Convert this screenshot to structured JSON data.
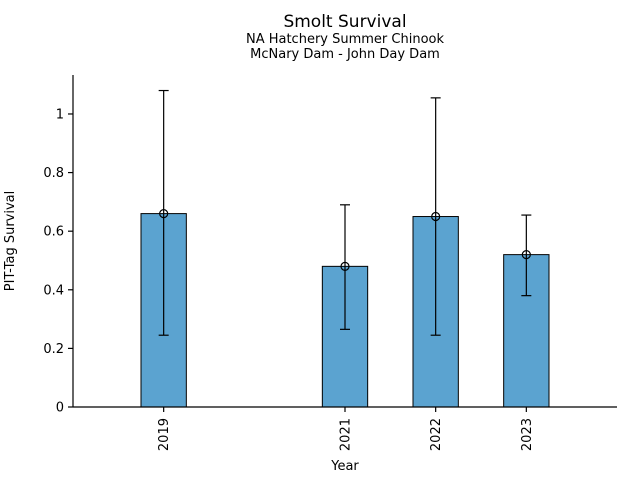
{
  "chart_data": {
    "type": "bar",
    "title": "Smolt Survival",
    "subtitle1": "NA Hatchery Summer Chinook",
    "subtitle2": "McNary Dam - John Day Dam",
    "xlabel": "Year",
    "ylabel": "PIT-Tag Survival",
    "categories": [
      2019,
      2021,
      2022,
      2023
    ],
    "category_labels": [
      "2019",
      "2021",
      "2022",
      "2023"
    ],
    "values": [
      0.66,
      0.48,
      0.65,
      0.52
    ],
    "error_low": [
      0.245,
      0.265,
      0.245,
      0.38
    ],
    "error_high": [
      1.08,
      0.69,
      1.055,
      0.655
    ],
    "xlim": [
      2018,
      2024
    ],
    "ylim": [
      0,
      1.133
    ],
    "yticks": [
      0,
      0.2,
      0.4,
      0.6,
      0.8,
      1
    ],
    "ytick_labels": [
      "0",
      "0.2",
      "0.4",
      "0.6",
      "0.8",
      "1"
    ],
    "bar_width_years": 0.5,
    "bar_color": "#5BA3D0",
    "bar_edge_color": "#000000",
    "error_color": "#000000",
    "marker": "open-circle",
    "grid": false,
    "legend": null,
    "xtick_label_rotation_deg": 90
  }
}
